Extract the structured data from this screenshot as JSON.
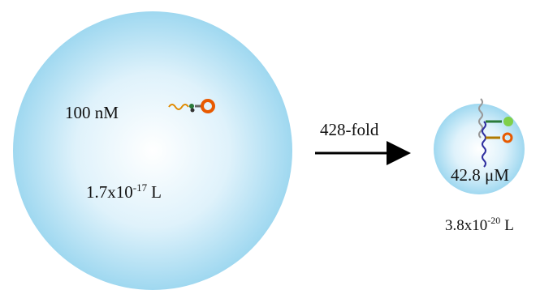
{
  "large_droplet": {
    "concentration": "100 nM",
    "volume": {
      "base": "1.7x10",
      "exponent": "-17",
      "unit": "L"
    }
  },
  "arrow": {
    "label": "428-fold"
  },
  "small_droplet": {
    "concentration": "42.8 μM",
    "volume": {
      "base": "3.8x10",
      "exponent": "-20",
      "unit": "L"
    }
  }
}
